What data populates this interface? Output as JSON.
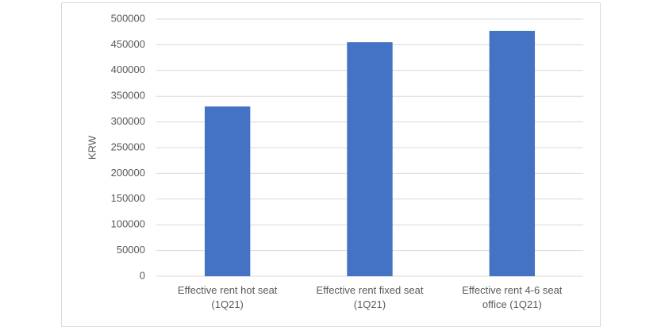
{
  "chart_data": {
    "type": "bar",
    "y_label": "KRW",
    "categories": [
      "Effective rent hot seat (1Q21)",
      "Effective rent fixed seat (1Q21)",
      "Effective rent 4-6 seat office (1Q21)"
    ],
    "values": [
      330000,
      455000,
      477000
    ],
    "color": "#4472c4",
    "ylim": [
      0,
      500000
    ],
    "yticks": [
      0,
      50000,
      100000,
      150000,
      200000,
      250000,
      300000,
      350000,
      400000,
      450000,
      500000
    ],
    "grid": true
  }
}
